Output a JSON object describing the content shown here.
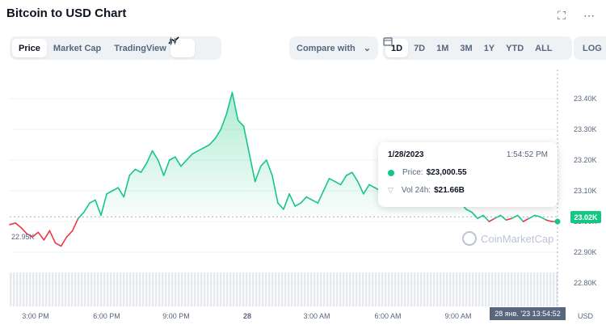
{
  "header": {
    "title": "Bitcoin to USD Chart"
  },
  "tabs": [
    {
      "label": "Price",
      "active": true
    },
    {
      "label": "Market Cap",
      "active": false
    },
    {
      "label": "TradingView",
      "active": false
    }
  ],
  "compare": {
    "label": "Compare with"
  },
  "ranges": [
    {
      "label": "1D",
      "active": true
    },
    {
      "label": "7D",
      "active": false
    },
    {
      "label": "1M",
      "active": false
    },
    {
      "label": "3M",
      "active": false
    },
    {
      "label": "1Y",
      "active": false
    },
    {
      "label": "YTD",
      "active": false
    },
    {
      "label": "ALL",
      "active": false
    }
  ],
  "log_label": "LOG",
  "tooltip": {
    "date": "1/28/2023",
    "time": "1:54:52 PM",
    "price_label": "Price:",
    "price_value": "$23,000.55",
    "vol_label": "Vol 24h:",
    "vol_value": "$21.66B"
  },
  "current_price_tag": "23.02K",
  "low_tag": "22.95K",
  "date_tag": "28 янв. '23   13:54:52",
  "watermark": "CoinMarketCap",
  "currency": "USD",
  "colors": {
    "up": "#16c784",
    "down": "#ea3943",
    "text_muted": "#58667e"
  },
  "chart_data": {
    "type": "area",
    "y_ticks": [
      "23.40K",
      "23.30K",
      "23.20K",
      "23.10K",
      "23.00K",
      "22.90K",
      "22.80K"
    ],
    "x_ticks": [
      "3:00 PM",
      "6:00 PM",
      "9:00 PM",
      "28",
      "3:00 AM",
      "6:00 AM",
      "9:00 AM"
    ],
    "ylim": [
      22800,
      23400
    ],
    "y_axis": "right",
    "grid": true,
    "baseline": 23015,
    "series": [
      {
        "values": [
          22990,
          22995,
          22980,
          22960,
          22950,
          22965,
          22940,
          22970,
          22930,
          22920,
          22950,
          22970,
          23010,
          23030,
          23060,
          23070,
          23020,
          23090,
          23100,
          23110,
          23080,
          23150,
          23170,
          23160,
          23190,
          23230,
          23200,
          23150,
          23200,
          23210,
          23180,
          23200,
          23220,
          23230,
          23240,
          23250,
          23270,
          23300,
          23350,
          23420,
          23330,
          23310,
          23220,
          23130,
          23180,
          23200,
          23150,
          23060,
          23040,
          23090,
          23050,
          23060,
          23080,
          23070,
          23060,
          23100,
          23140,
          23130,
          23120,
          23150,
          23160,
          23130,
          23090,
          23120,
          23110,
          23100,
          23120,
          23110,
          23100,
          23105,
          23110,
          23120,
          23110,
          23105,
          23110,
          23100,
          23090,
          23100,
          23080,
          23060,
          23040,
          23030,
          23010,
          23020,
          23000,
          23010,
          23020,
          23005,
          23010,
          23020,
          23000,
          23010,
          23020,
          23015,
          23005,
          23000,
          23000
        ]
      }
    ]
  }
}
